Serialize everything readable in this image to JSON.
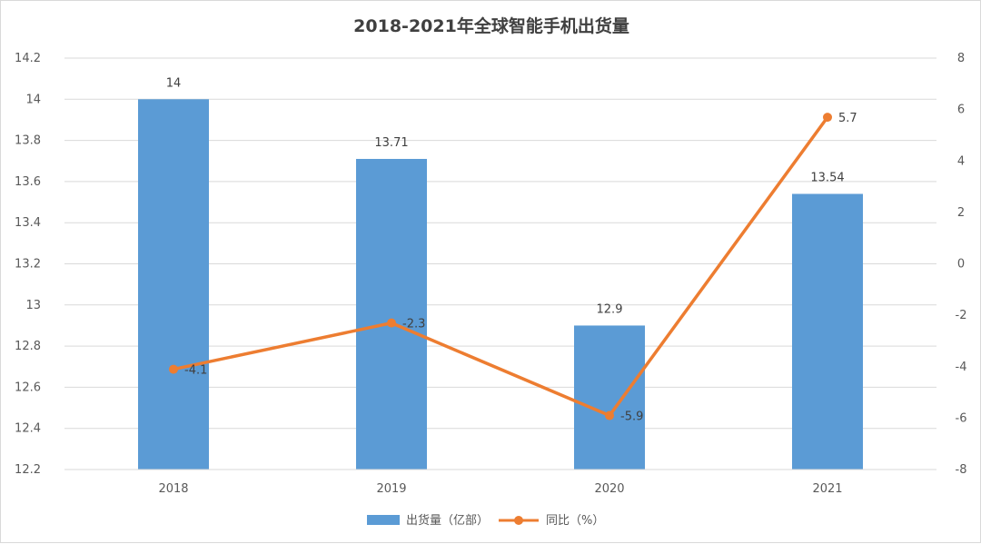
{
  "chart_data": {
    "type": "bar",
    "title": "2018-2021年全球智能手机出货量",
    "categories": [
      "2018",
      "2019",
      "2020",
      "2021"
    ],
    "series": [
      {
        "name": "出货量（亿部）",
        "type": "bar",
        "axis": "left",
        "color": "#5b9bd5",
        "values": [
          14,
          13.71,
          12.9,
          13.54
        ],
        "labels": [
          "14",
          "13.71",
          "12.9",
          "13.54"
        ]
      },
      {
        "name": "同比（%）",
        "type": "line",
        "axis": "right",
        "color": "#ed7d31",
        "values": [
          -4.1,
          -2.3,
          -5.9,
          5.7
        ],
        "labels": [
          "-4.1",
          "-2.3",
          "-5.9",
          "5.7"
        ]
      }
    ],
    "y_left": {
      "range": [
        12.2,
        14.2
      ],
      "ticks": [
        "14.2",
        "14",
        "13.8",
        "13.6",
        "13.4",
        "13.2",
        "13",
        "12.8",
        "12.6",
        "12.4",
        "12.2"
      ]
    },
    "y_right": {
      "range": [
        -8,
        8
      ],
      "ticks": [
        "8",
        "6",
        "4",
        "2",
        "0",
        "-2",
        "-4",
        "-6",
        "-8"
      ]
    },
    "grid": true,
    "legend_position": "bottom"
  }
}
